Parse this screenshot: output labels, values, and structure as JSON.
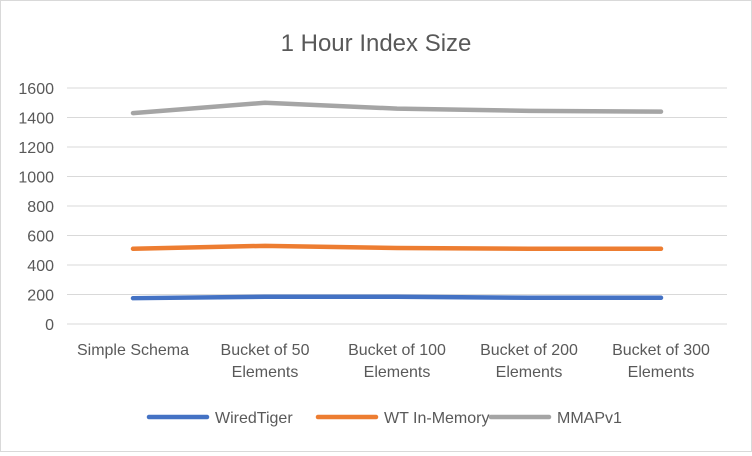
{
  "chart_data": {
    "type": "line",
    "title": "1 Hour Index Size",
    "xlabel": "",
    "ylabel": "",
    "categories": [
      [
        "Simple Schema"
      ],
      [
        "Bucket of 50",
        "Elements"
      ],
      [
        "Bucket of 100",
        "Elements"
      ],
      [
        "Bucket of 200",
        "Elements"
      ],
      [
        "Bucket of 300",
        "Elements"
      ]
    ],
    "ylim": [
      0,
      1600
    ],
    "yticks": [
      "0",
      "200",
      "400",
      "600",
      "800",
      "1000",
      "1200",
      "1400",
      "1600"
    ],
    "grid": true,
    "legend_position": "bottom",
    "series": [
      {
        "name": "WiredTiger",
        "color": "#4472C4",
        "values": [
          175,
          185,
          185,
          178,
          178
        ]
      },
      {
        "name": "WT In-Memory",
        "color": "#ED7D31",
        "values": [
          510,
          530,
          515,
          510,
          510
        ]
      },
      {
        "name": "MMAPv1",
        "color": "#A5A5A5",
        "values": [
          1430,
          1500,
          1460,
          1445,
          1440
        ]
      }
    ]
  }
}
